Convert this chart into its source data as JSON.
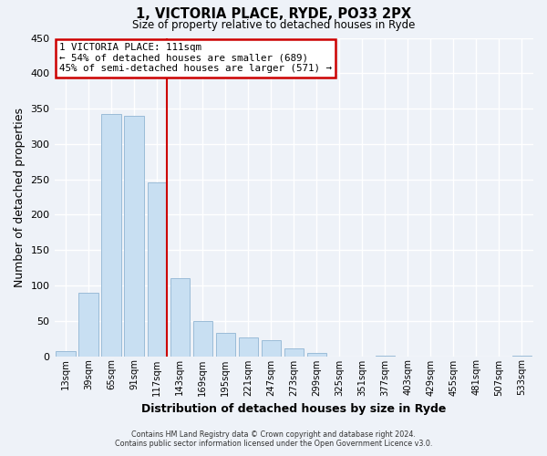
{
  "title": "1, VICTORIA PLACE, RYDE, PO33 2PX",
  "subtitle": "Size of property relative to detached houses in Ryde",
  "xlabel": "Distribution of detached houses by size in Ryde",
  "ylabel": "Number of detached properties",
  "bar_color": "#c8dff2",
  "bar_edge_color": "#9bbcd8",
  "vline_color": "#cc0000",
  "categories": [
    "13sqm",
    "39sqm",
    "65sqm",
    "91sqm",
    "117sqm",
    "143sqm",
    "169sqm",
    "195sqm",
    "221sqm",
    "247sqm",
    "273sqm",
    "299sqm",
    "325sqm",
    "351sqm",
    "377sqm",
    "403sqm",
    "429sqm",
    "455sqm",
    "481sqm",
    "507sqm",
    "533sqm"
  ],
  "values": [
    7,
    89,
    342,
    340,
    246,
    110,
    50,
    33,
    26,
    22,
    11,
    5,
    0,
    0,
    1,
    0,
    0,
    0,
    0,
    0,
    1
  ],
  "ylim": [
    0,
    450
  ],
  "yticks": [
    0,
    50,
    100,
    150,
    200,
    250,
    300,
    350,
    400,
    450
  ],
  "vline_bar_index": 4,
  "annotation_title": "1 VICTORIA PLACE: 111sqm",
  "annotation_line1": "← 54% of detached houses are smaller (689)",
  "annotation_line2": "45% of semi-detached houses are larger (571) →",
  "annotation_box_color": "white",
  "annotation_box_edge": "#cc0000",
  "footer1": "Contains HM Land Registry data © Crown copyright and database right 2024.",
  "footer2": "Contains public sector information licensed under the Open Government Licence v3.0.",
  "background_color": "#eef2f8"
}
